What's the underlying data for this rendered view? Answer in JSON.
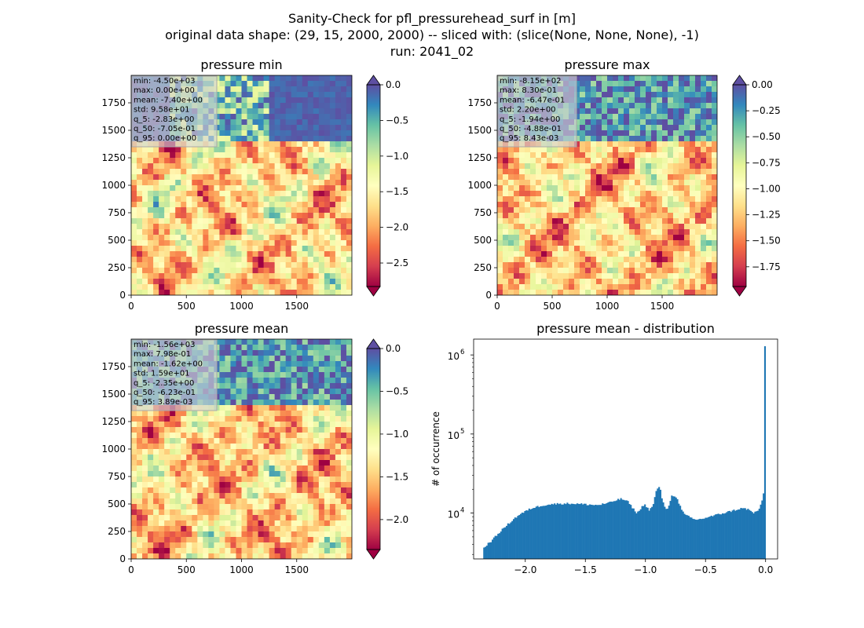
{
  "figure": {
    "title_lines": [
      "Sanity-Check for pfl_pressurehead_surf in [m]",
      "original data shape: (29, 15, 2000, 2000) -- sliced with: (slice(None, None, None), -1)",
      "run: 2041_02"
    ]
  },
  "colormap": [
    "#9e0142",
    "#d53e4f",
    "#f46d43",
    "#fdae61",
    "#fee08b",
    "#ffffbf",
    "#e6f598",
    "#abdda4",
    "#66c2a5",
    "#3288bd",
    "#5e4fa2"
  ],
  "chart_data": [
    {
      "type": "heatmap",
      "title": "pressure min",
      "xlim": [
        0,
        2000
      ],
      "ylim": [
        0,
        2000
      ],
      "xticks": [
        "0",
        "500",
        "1000",
        "1500"
      ],
      "yticks": [
        "0",
        "250",
        "500",
        "750",
        "1000",
        "1250",
        "1500",
        "1750"
      ],
      "colorbar": {
        "vmin": -2.83,
        "vmax": 0.0,
        "ticks": [
          "0.0",
          "−0.5",
          "−1.0",
          "−1.5",
          "−2.0",
          "−2.5"
        ],
        "tick_values": [
          0.0,
          -0.5,
          -1.0,
          -1.5,
          -2.0,
          -2.5
        ],
        "extend": "both"
      },
      "stats": [
        "min: -4.50e+03",
        "max: 0.00e+00",
        "mean: -7.40e+00",
        "std: 9.58e+01",
        "q_5: -2.83e+00",
        "q_50: -7.05e-01",
        "q_95: 0.00e+00"
      ]
    },
    {
      "type": "heatmap",
      "title": "pressure max",
      "xlim": [
        0,
        2000
      ],
      "ylim": [
        0,
        2000
      ],
      "xticks": [
        "0",
        "500",
        "1000",
        "1500"
      ],
      "yticks": [
        "0",
        "250",
        "500",
        "750",
        "1000",
        "1250",
        "1500",
        "1750"
      ],
      "colorbar": {
        "vmin": -1.94,
        "vmax": 0.0,
        "ticks": [
          "0.00",
          "−0.25",
          "−0.50",
          "−0.75",
          "−1.00",
          "−1.25",
          "−1.50",
          "−1.75"
        ],
        "tick_values": [
          0.0,
          -0.25,
          -0.5,
          -0.75,
          -1.0,
          -1.25,
          -1.5,
          -1.75
        ],
        "extend": "both"
      },
      "stats": [
        "min: -8.15e+02",
        "max: 8.30e-01",
        "mean: -6.47e-01",
        "std: 2.20e+00",
        "q_5: -1.94e+00",
        "q_50: -4.88e-01",
        "q_95: 8.43e-03"
      ]
    },
    {
      "type": "heatmap",
      "title": "pressure mean",
      "xlim": [
        0,
        2000
      ],
      "ylim": [
        0,
        2000
      ],
      "xticks": [
        "0",
        "500",
        "1000",
        "1500"
      ],
      "yticks": [
        "0",
        "250",
        "500",
        "750",
        "1000",
        "1250",
        "1500",
        "1750"
      ],
      "colorbar": {
        "vmin": -2.35,
        "vmax": 0.0,
        "ticks": [
          "0.0",
          "−0.5",
          "−1.0",
          "−1.5",
          "−2.0"
        ],
        "tick_values": [
          0.0,
          -0.5,
          -1.0,
          -1.5,
          -2.0
        ],
        "extend": "both"
      },
      "stats": [
        "min: -1.56e+03",
        "max: 7.98e-01",
        "mean: -1.62e+00",
        "std: 1.59e+01",
        "q_5: -2.35e+00",
        "q_50: -6.23e-01",
        "q_95: 3.89e-03"
      ]
    },
    {
      "type": "bar",
      "title": "pressure mean - distribution",
      "ylabel": "# of occurrence",
      "xlim": [
        -2.43,
        0.1
      ],
      "ylim_log10": [
        3.42,
        6.2
      ],
      "yscale": "log",
      "xticks": [
        "−2.0",
        "−1.5",
        "−1.0",
        "−0.5",
        "0.0"
      ],
      "xtick_values": [
        -2.0,
        -1.5,
        -1.0,
        -0.5,
        0.0
      ],
      "yticks": [
        "10",
        "10",
        "10"
      ],
      "ytick_exponents": [
        "4",
        "5",
        "6"
      ],
      "ytick_log10": [
        4,
        5,
        6
      ],
      "color": "#1f77b4",
      "profile_x": [
        -2.35,
        -2.32,
        -2.28,
        -2.25,
        -2.2,
        -2.15,
        -2.1,
        -2.05,
        -2.0,
        -1.95,
        -1.9,
        -1.85,
        -1.8,
        -1.7,
        -1.6,
        -1.5,
        -1.4,
        -1.3,
        -1.25,
        -1.2,
        -1.15,
        -1.1,
        -1.07,
        -1.05,
        -1.02,
        -1.0,
        -0.97,
        -0.94,
        -0.91,
        -0.88,
        -0.86,
        -0.84,
        -0.82,
        -0.8,
        -0.78,
        -0.75,
        -0.72,
        -0.7,
        -0.68,
        -0.65,
        -0.62,
        -0.6,
        -0.55,
        -0.5,
        -0.4,
        -0.3,
        -0.2,
        -0.15,
        -0.1,
        -0.05,
        -0.02,
        -0.01,
        0.0
      ],
      "profile_log10": [
        3.55,
        3.6,
        3.65,
        3.7,
        3.78,
        3.85,
        3.92,
        3.98,
        4.02,
        4.06,
        4.08,
        4.1,
        4.11,
        4.12,
        4.12,
        4.11,
        4.1,
        4.13,
        4.16,
        4.18,
        4.15,
        4.05,
        4.0,
        4.03,
        4.1,
        4.1,
        4.04,
        4.08,
        4.28,
        4.34,
        4.16,
        4.07,
        4.05,
        4.12,
        4.22,
        4.22,
        4.12,
        4.04,
        3.99,
        3.96,
        3.94,
        3.92,
        3.92,
        3.94,
        3.98,
        4.02,
        4.06,
        4.05,
        4.0,
        4.05,
        4.2,
        4.42,
        6.11
      ]
    }
  ]
}
